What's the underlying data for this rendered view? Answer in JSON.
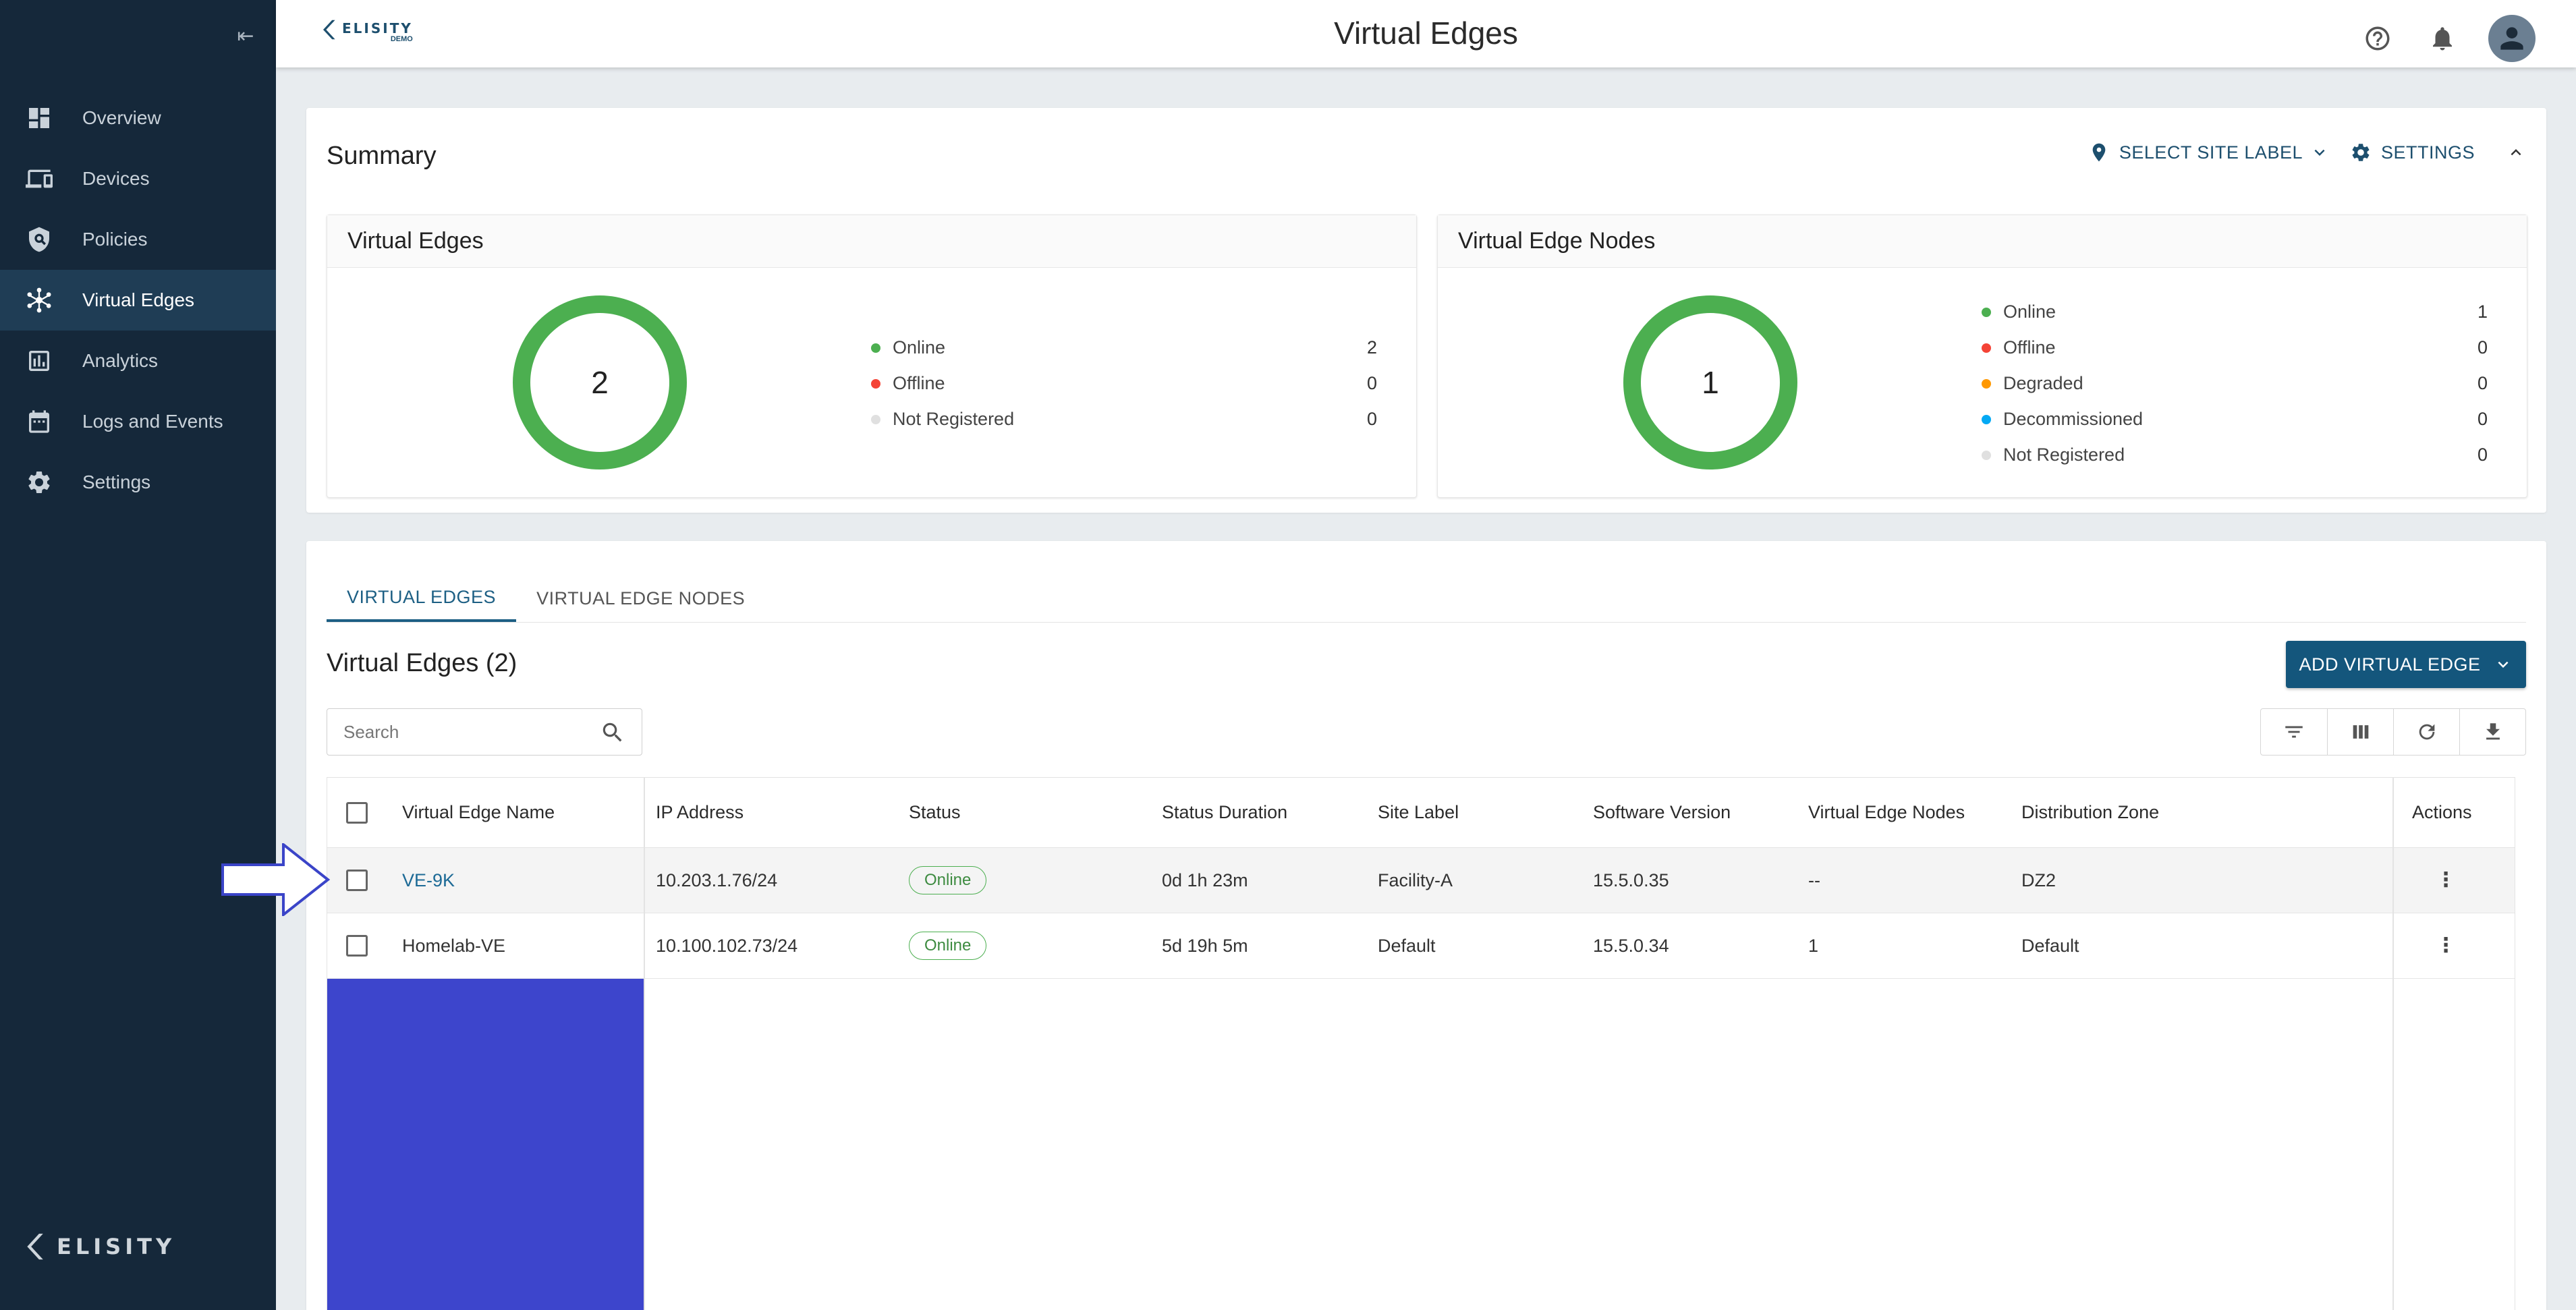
{
  "app": {
    "brand_name": "ELISITY",
    "brand_sub": "DEMO",
    "footer_brand": "ELISITY"
  },
  "header": {
    "title": "Virtual Edges"
  },
  "sidebar": {
    "items": [
      {
        "label": "Overview",
        "icon": "dashboard-icon",
        "active": false
      },
      {
        "label": "Devices",
        "icon": "devices-icon",
        "active": false
      },
      {
        "label": "Policies",
        "icon": "policy-shield-icon",
        "active": false
      },
      {
        "label": "Virtual Edges",
        "icon": "hub-icon",
        "active": true
      },
      {
        "label": "Analytics",
        "icon": "analytics-icon",
        "active": false
      },
      {
        "label": "Logs and Events",
        "icon": "calendar-icon",
        "active": false
      },
      {
        "label": "Settings",
        "icon": "gear-icon",
        "active": false
      }
    ]
  },
  "summary": {
    "title": "Summary",
    "select_site_label": "SELECT SITE LABEL",
    "settings_label": "SETTINGS",
    "virtual_edges": {
      "title": "Virtual Edges",
      "total": "2",
      "legend": [
        {
          "label": "Online",
          "value": "2",
          "color": "#4caf50"
        },
        {
          "label": "Offline",
          "value": "0",
          "color": "#f44336"
        },
        {
          "label": "Not Registered",
          "value": "0",
          "color": "#e0e0e0"
        }
      ]
    },
    "virtual_edge_nodes": {
      "title": "Virtual Edge Nodes",
      "total": "1",
      "legend": [
        {
          "label": "Online",
          "value": "1",
          "color": "#4caf50"
        },
        {
          "label": "Offline",
          "value": "0",
          "color": "#f44336"
        },
        {
          "label": "Degraded",
          "value": "0",
          "color": "#ff9800"
        },
        {
          "label": "Decommissioned",
          "value": "0",
          "color": "#03a9f4"
        },
        {
          "label": "Not Registered",
          "value": "0",
          "color": "#e0e0e0"
        }
      ]
    }
  },
  "tabs": [
    {
      "label": "VIRTUAL EDGES",
      "active": true
    },
    {
      "label": "VIRTUAL EDGE NODES",
      "active": false
    }
  ],
  "table": {
    "heading": "Virtual Edges (2)",
    "add_button": "ADD VIRTUAL EDGE",
    "search_placeholder": "Search",
    "columns": [
      "Virtual Edge Name",
      "IP Address",
      "Status",
      "Status Duration",
      "Site Label",
      "Software Version",
      "Virtual Edge Nodes",
      "Distribution Zone",
      "Actions"
    ],
    "rows": [
      {
        "name": "VE-9K",
        "ip": "10.203.1.76/24",
        "status": "Online",
        "duration": "0d 1h 23m",
        "site": "Facility-A",
        "version": "15.5.0.35",
        "nodes": "--",
        "zone": "DZ2",
        "action": "⋮"
      },
      {
        "name": "Homelab-VE",
        "ip": "10.100.102.73/24",
        "status": "Online",
        "duration": "5d 19h 5m",
        "site": "Default",
        "version": "15.5.0.34",
        "nodes": "1",
        "zone": "Default",
        "action": "⋮"
      }
    ]
  }
}
